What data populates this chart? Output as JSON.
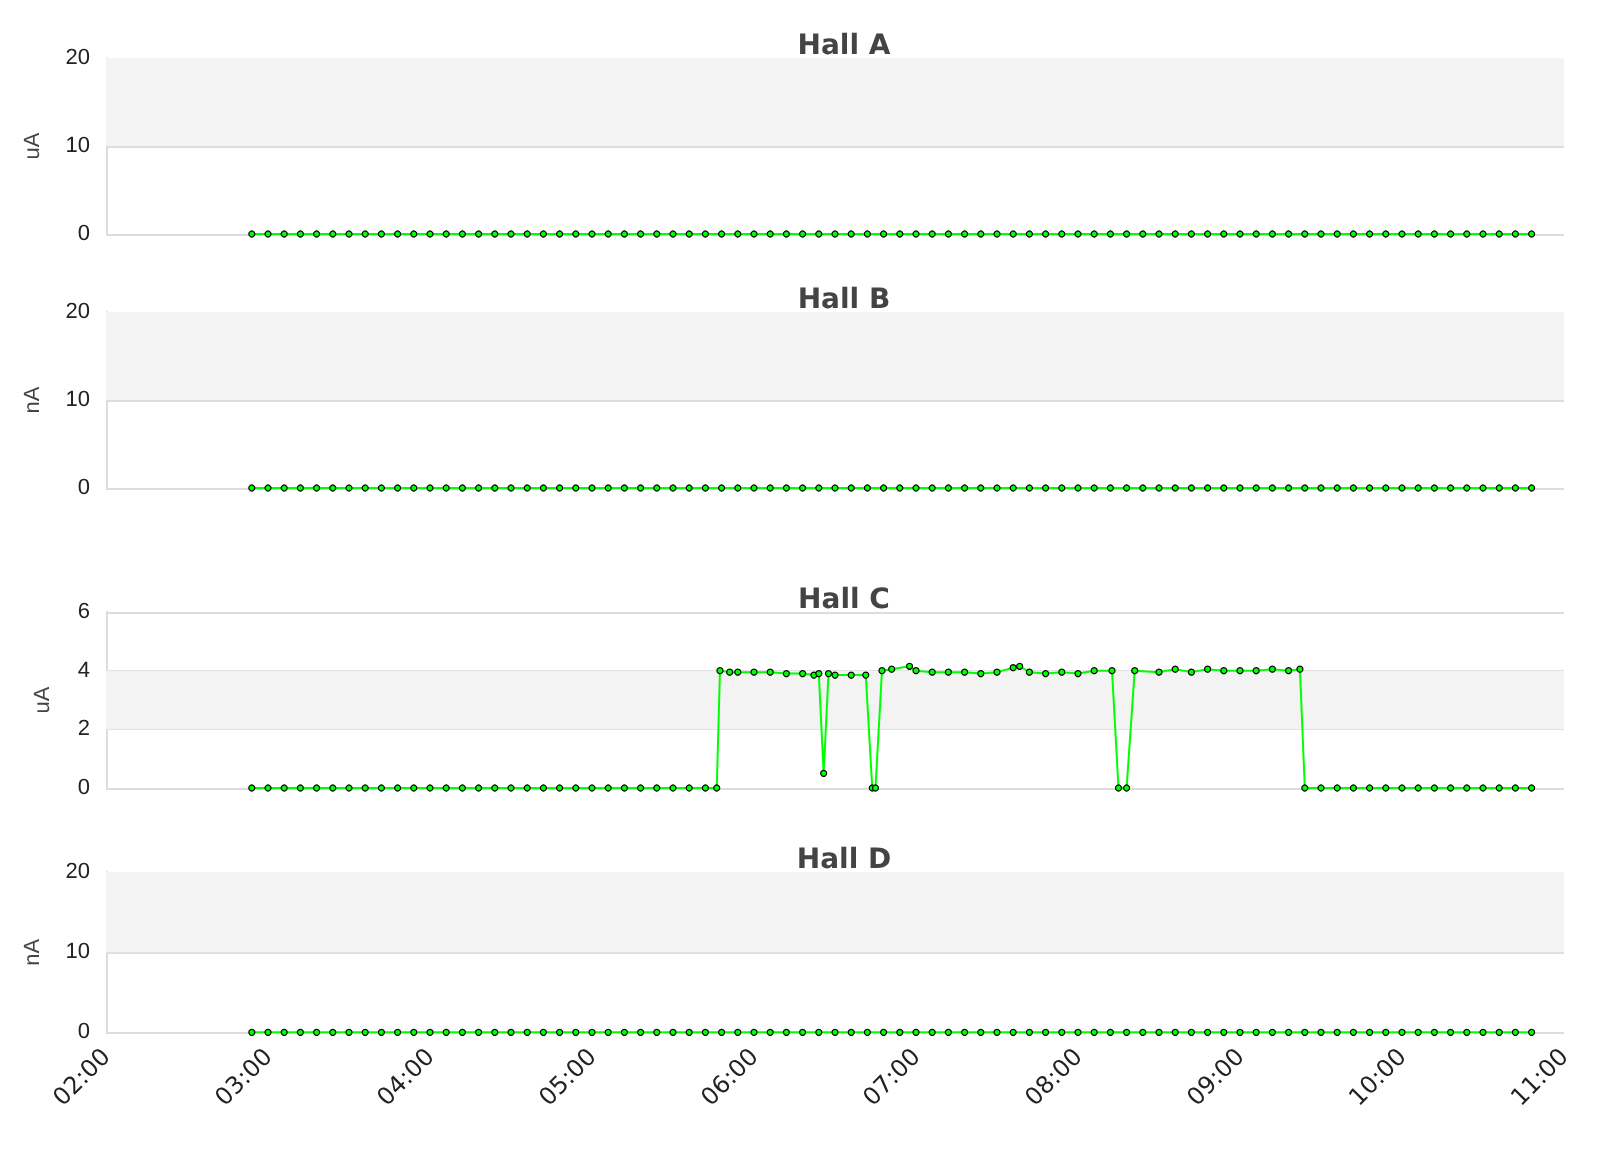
{
  "chart_data": [
    {
      "type": "line",
      "title": "Hall A",
      "ylabel": "uA",
      "xlim": [
        2,
        11
      ],
      "ylim": [
        0,
        20
      ],
      "yticks": [
        0,
        10,
        20
      ],
      "grid": "y",
      "marker": "circle",
      "tick_labels": "y",
      "bands": [
        {
          "axis": "y",
          "from": 10,
          "to": 20,
          "color": "#f3f3f3"
        }
      ],
      "x": [
        2.9,
        3.0,
        3.1,
        3.2,
        3.3,
        3.4,
        3.5,
        3.6,
        3.7,
        3.8,
        3.9,
        4.0,
        4.1,
        4.2,
        4.3,
        4.4,
        4.5,
        4.6,
        4.7,
        4.8,
        4.9,
        5.0,
        5.1,
        5.2,
        5.3,
        5.4,
        5.5,
        5.6,
        5.7,
        5.8,
        5.9,
        6.0,
        6.1,
        6.2,
        6.3,
        6.4,
        6.5,
        6.6,
        6.7,
        6.8,
        6.9,
        7.0,
        7.1,
        7.2,
        7.3,
        7.4,
        7.5,
        7.6,
        7.7,
        7.8,
        7.9,
        8.0,
        8.1,
        8.2,
        8.3,
        8.4,
        8.5,
        8.6,
        8.7,
        8.8,
        8.9,
        9.0,
        9.1,
        9.2,
        9.3,
        9.4,
        9.5,
        9.6,
        9.7,
        9.8,
        9.9,
        10.0,
        10.1,
        10.2,
        10.3,
        10.4,
        10.5,
        10.6,
        10.7,
        10.8
      ],
      "series": [
        {
          "color": "#00ff00",
          "values": [
            0,
            0,
            0,
            0,
            0,
            0,
            0,
            0,
            0,
            0,
            0,
            0,
            0,
            0,
            0,
            0,
            0,
            0,
            0,
            0,
            0,
            0,
            0,
            0,
            0,
            0,
            0,
            0,
            0,
            0,
            0,
            0,
            0,
            0,
            0,
            0,
            0,
            0,
            0,
            0,
            0,
            0,
            0,
            0,
            0,
            0,
            0,
            0,
            0,
            0,
            0,
            0,
            0,
            0,
            0,
            0,
            0,
            0,
            0,
            0,
            0,
            0,
            0,
            0,
            0,
            0,
            0,
            0,
            0,
            0,
            0,
            0,
            0,
            0,
            0,
            0,
            0,
            0,
            0,
            0
          ]
        }
      ]
    },
    {
      "type": "line",
      "title": "Hall B",
      "ylabel": "nA",
      "xlim": [
        2,
        11
      ],
      "ylim": [
        0,
        20
      ],
      "yticks": [
        0,
        10,
        20
      ],
      "grid": "y",
      "marker": "circle",
      "tick_labels": "y",
      "bands": [
        {
          "axis": "y",
          "from": 10,
          "to": 20,
          "color": "#f3f3f3"
        }
      ],
      "x": [
        2.9,
        3.0,
        3.1,
        3.2,
        3.3,
        3.4,
        3.5,
        3.6,
        3.7,
        3.8,
        3.9,
        4.0,
        4.1,
        4.2,
        4.3,
        4.4,
        4.5,
        4.6,
        4.7,
        4.8,
        4.9,
        5.0,
        5.1,
        5.2,
        5.3,
        5.4,
        5.5,
        5.6,
        5.7,
        5.8,
        5.9,
        6.0,
        6.1,
        6.2,
        6.3,
        6.4,
        6.5,
        6.6,
        6.7,
        6.8,
        6.9,
        7.0,
        7.1,
        7.2,
        7.3,
        7.4,
        7.5,
        7.6,
        7.7,
        7.8,
        7.9,
        8.0,
        8.1,
        8.2,
        8.3,
        8.4,
        8.5,
        8.6,
        8.7,
        8.8,
        8.9,
        9.0,
        9.1,
        9.2,
        9.3,
        9.4,
        9.5,
        9.6,
        9.7,
        9.8,
        9.9,
        10.0,
        10.1,
        10.2,
        10.3,
        10.4,
        10.5,
        10.6,
        10.7,
        10.8
      ],
      "series": [
        {
          "color": "#00ff00",
          "values": [
            0,
            0,
            0,
            0,
            0,
            0,
            0,
            0,
            0,
            0,
            0,
            0,
            0,
            0,
            0,
            0,
            0,
            0,
            0,
            0,
            0,
            0,
            0,
            0,
            0,
            0,
            0,
            0,
            0,
            0,
            0,
            0,
            0,
            0,
            0,
            0,
            0,
            0,
            0,
            0,
            0,
            0,
            0,
            0,
            0,
            0,
            0,
            0,
            0,
            0,
            0,
            0,
            0,
            0,
            0,
            0,
            0,
            0,
            0,
            0,
            0,
            0,
            0,
            0,
            0,
            0,
            0,
            0,
            0,
            0,
            0,
            0,
            0,
            0,
            0,
            0,
            0,
            0,
            0,
            0
          ]
        }
      ]
    },
    {
      "type": "line",
      "title": "Hall C",
      "ylabel": "uA",
      "xlim": [
        2,
        11
      ],
      "ylim": [
        0,
        6
      ],
      "yticks": [
        0,
        2,
        4,
        6
      ],
      "grid": "y",
      "marker": "circle",
      "tick_labels": "y",
      "bands": [
        {
          "axis": "y",
          "from": 2,
          "to": 4,
          "color": "#f3f3f3"
        }
      ],
      "x": [
        2.9,
        3.0,
        3.1,
        3.2,
        3.3,
        3.4,
        3.5,
        3.6,
        3.7,
        3.8,
        3.9,
        4.0,
        4.1,
        4.2,
        4.3,
        4.4,
        4.5,
        4.6,
        4.7,
        4.8,
        4.9,
        5.0,
        5.1,
        5.2,
        5.3,
        5.4,
        5.5,
        5.6,
        5.7,
        5.77,
        5.79,
        5.85,
        5.9,
        6.0,
        6.1,
        6.2,
        6.3,
        6.37,
        6.4,
        6.43,
        6.46,
        6.5,
        6.6,
        6.69,
        6.73,
        6.75,
        6.79,
        6.85,
        6.96,
        7.0,
        7.1,
        7.2,
        7.3,
        7.4,
        7.5,
        7.6,
        7.64,
        7.7,
        7.8,
        7.9,
        8.0,
        8.1,
        8.21,
        8.25,
        8.3,
        8.35,
        8.5,
        8.6,
        8.7,
        8.8,
        8.9,
        9.0,
        9.1,
        9.2,
        9.3,
        9.37,
        9.4,
        9.5,
        9.6,
        9.7,
        9.8,
        9.9,
        10.0,
        10.1,
        10.2,
        10.3,
        10.4,
        10.5,
        10.6,
        10.7,
        10.8
      ],
      "series": [
        {
          "color": "#00ff00",
          "values": [
            0,
            0,
            0,
            0,
            0,
            0,
            0,
            0,
            0,
            0,
            0,
            0,
            0,
            0,
            0,
            0,
            0,
            0,
            0,
            0,
            0,
            0,
            0,
            0,
            0,
            0,
            0,
            0,
            0,
            0,
            4.0,
            3.95,
            3.95,
            3.95,
            3.95,
            3.9,
            3.9,
            3.85,
            3.9,
            0.5,
            3.9,
            3.85,
            3.85,
            3.85,
            0,
            0,
            4.0,
            4.05,
            4.15,
            4.0,
            3.95,
            3.95,
            3.95,
            3.9,
            3.95,
            4.1,
            4.15,
            3.95,
            3.9,
            3.95,
            3.9,
            4.0,
            4.0,
            0,
            0,
            4.0,
            3.95,
            4.05,
            3.95,
            4.05,
            4.0,
            4.0,
            4.0,
            4.05,
            4.0,
            4.05,
            0,
            0,
            0,
            0,
            0,
            0,
            0,
            0,
            0,
            0,
            0,
            0,
            0,
            0,
            0
          ]
        }
      ]
    },
    {
      "type": "line",
      "title": "Hall D",
      "ylabel": "nA",
      "xlim": [
        2,
        11
      ],
      "xticks": [
        {
          "value": 2,
          "label": "02:00"
        },
        {
          "value": 3,
          "label": "03:00"
        },
        {
          "value": 4,
          "label": "04:00"
        },
        {
          "value": 5,
          "label": "05:00"
        },
        {
          "value": 6,
          "label": "06:00"
        },
        {
          "value": 7,
          "label": "07:00"
        },
        {
          "value": 8,
          "label": "08:00"
        },
        {
          "value": 9,
          "label": "09:00"
        },
        {
          "value": 10,
          "label": "10:00"
        },
        {
          "value": 11,
          "label": "11:00"
        }
      ],
      "ylim": [
        0,
        20
      ],
      "yticks": [
        0,
        10,
        20
      ],
      "grid": "y",
      "marker": "circle",
      "bands": [
        {
          "axis": "y",
          "from": 10,
          "to": 20,
          "color": "#f3f3f3"
        }
      ],
      "x": [
        2.9,
        3.0,
        3.1,
        3.2,
        3.3,
        3.4,
        3.5,
        3.6,
        3.7,
        3.8,
        3.9,
        4.0,
        4.1,
        4.2,
        4.3,
        4.4,
        4.5,
        4.6,
        4.7,
        4.8,
        4.9,
        5.0,
        5.1,
        5.2,
        5.3,
        5.4,
        5.5,
        5.6,
        5.7,
        5.8,
        5.9,
        6.0,
        6.1,
        6.2,
        6.3,
        6.4,
        6.5,
        6.6,
        6.7,
        6.8,
        6.9,
        7.0,
        7.1,
        7.2,
        7.3,
        7.4,
        7.5,
        7.6,
        7.7,
        7.8,
        7.9,
        8.0,
        8.1,
        8.2,
        8.3,
        8.4,
        8.5,
        8.6,
        8.7,
        8.8,
        8.9,
        9.0,
        9.1,
        9.2,
        9.3,
        9.4,
        9.5,
        9.6,
        9.7,
        9.8,
        9.9,
        10.0,
        10.1,
        10.2,
        10.3,
        10.4,
        10.5,
        10.6,
        10.7,
        10.8
      ],
      "series": [
        {
          "color": "#00ff00",
          "values": [
            0,
            0,
            0,
            0,
            0,
            0,
            0,
            0,
            0,
            0,
            0,
            0,
            0,
            0,
            0,
            0,
            0,
            0,
            0,
            0,
            0,
            0,
            0,
            0,
            0,
            0,
            0,
            0,
            0,
            0,
            0,
            0,
            0,
            0,
            0,
            0,
            0,
            0,
            0,
            0,
            0,
            0,
            0,
            0,
            0,
            0,
            0,
            0,
            0,
            0,
            0,
            0,
            0,
            0,
            0,
            0,
            0,
            0,
            0,
            0,
            0,
            0,
            0,
            0,
            0,
            0,
            0,
            0,
            0,
            0,
            0,
            0,
            0,
            0,
            0,
            0,
            0,
            0,
            0,
            0
          ]
        }
      ]
    }
  ]
}
